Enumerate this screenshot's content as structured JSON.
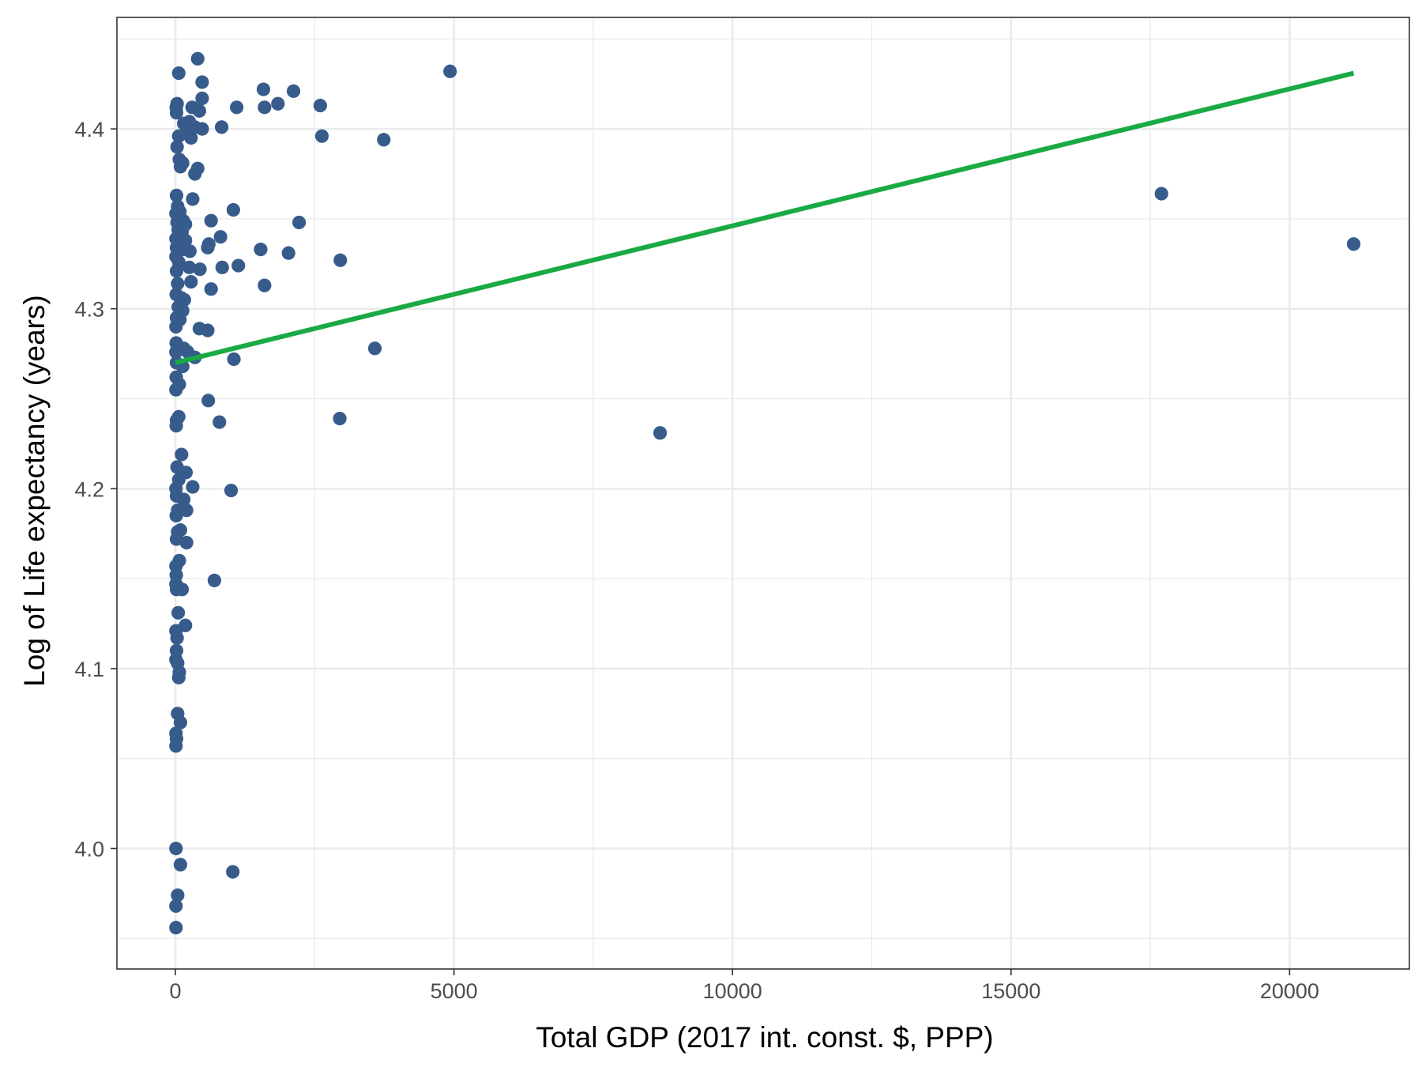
{
  "chart_data": {
    "type": "scatter",
    "title": "",
    "xlabel": "Total GDP (2017 int. const. $, PPP)",
    "ylabel": "Log of Life expectancy  (years)",
    "xlim": [
      -1050,
      22150
    ],
    "ylim": [
      3.933,
      4.462
    ],
    "x_ticks": [
      0,
      5000,
      10000,
      15000,
      20000
    ],
    "y_ticks": [
      4.0,
      4.1,
      4.2,
      4.3,
      4.4
    ],
    "grid": true,
    "legend": "none",
    "colors": {
      "points": "#375c8c",
      "fit_line": "#1aaa44",
      "grid": "#ebebeb",
      "panel_border": "#333333"
    },
    "series": [
      {
        "points": [
          [
            60,
            4.431
          ],
          [
            400,
            4.439
          ],
          [
            480,
            4.426
          ],
          [
            4930,
            4.432
          ],
          [
            1580,
            4.422
          ],
          [
            2120,
            4.421
          ],
          [
            30,
            4.414
          ],
          [
            15,
            4.412
          ],
          [
            20,
            4.409
          ],
          [
            300,
            4.412
          ],
          [
            480,
            4.417
          ],
          [
            430,
            4.41
          ],
          [
            1100,
            4.412
          ],
          [
            1600,
            4.412
          ],
          [
            1840,
            4.414
          ],
          [
            2600,
            4.413
          ],
          [
            150,
            4.403
          ],
          [
            250,
            4.404
          ],
          [
            350,
            4.401
          ],
          [
            200,
            4.398
          ],
          [
            480,
            4.4
          ],
          [
            830,
            4.401
          ],
          [
            60,
            4.396
          ],
          [
            280,
            4.395
          ],
          [
            2630,
            4.396
          ],
          [
            3740,
            4.394
          ],
          [
            30,
            4.39
          ],
          [
            70,
            4.383
          ],
          [
            130,
            4.381
          ],
          [
            90,
            4.379
          ],
          [
            400,
            4.378
          ],
          [
            350,
            4.375
          ],
          [
            20,
            4.363
          ],
          [
            310,
            4.361
          ],
          [
            40,
            4.357
          ],
          [
            10,
            4.353
          ],
          [
            80,
            4.354
          ],
          [
            1040,
            4.355
          ],
          [
            30,
            4.348
          ],
          [
            140,
            4.349
          ],
          [
            180,
            4.347
          ],
          [
            640,
            4.349
          ],
          [
            2220,
            4.348
          ],
          [
            50,
            4.344
          ],
          [
            120,
            4.343
          ],
          [
            10,
            4.339
          ],
          [
            90,
            4.339
          ],
          [
            180,
            4.338
          ],
          [
            600,
            4.336
          ],
          [
            810,
            4.34
          ],
          [
            20,
            4.334
          ],
          [
            130,
            4.333
          ],
          [
            260,
            4.332
          ],
          [
            580,
            4.334
          ],
          [
            1530,
            4.333
          ],
          [
            2030,
            4.331
          ],
          [
            10,
            4.329
          ],
          [
            60,
            4.326
          ],
          [
            2960,
            4.327
          ],
          [
            20,
            4.321
          ],
          [
            250,
            4.323
          ],
          [
            440,
            4.322
          ],
          [
            840,
            4.323
          ],
          [
            1130,
            4.324
          ],
          [
            40,
            4.314
          ],
          [
            280,
            4.315
          ],
          [
            640,
            4.311
          ],
          [
            1600,
            4.313
          ],
          [
            15,
            4.308
          ],
          [
            110,
            4.306
          ],
          [
            160,
            4.305
          ],
          [
            50,
            4.301
          ],
          [
            130,
            4.299
          ],
          [
            20,
            4.295
          ],
          [
            80,
            4.294
          ],
          [
            10,
            4.29
          ],
          [
            430,
            4.289
          ],
          [
            580,
            4.288
          ],
          [
            15,
            4.281
          ],
          [
            150,
            4.278
          ],
          [
            10,
            4.276
          ],
          [
            220,
            4.276
          ],
          [
            3580,
            4.278
          ],
          [
            20,
            4.27
          ],
          [
            1050,
            4.272
          ],
          [
            350,
            4.273
          ],
          [
            130,
            4.268
          ],
          [
            15,
            4.262
          ],
          [
            70,
            4.258
          ],
          [
            10,
            4.255
          ],
          [
            590,
            4.249
          ],
          [
            20,
            4.238
          ],
          [
            60,
            4.24
          ],
          [
            790,
            4.237
          ],
          [
            2950,
            4.239
          ],
          [
            15,
            4.235
          ],
          [
            8700,
            4.231
          ],
          [
            110,
            4.219
          ],
          [
            30,
            4.212
          ],
          [
            190,
            4.209
          ],
          [
            60,
            4.205
          ],
          [
            10,
            4.2
          ],
          [
            310,
            4.201
          ],
          [
            1000,
            4.199
          ],
          [
            20,
            4.196
          ],
          [
            150,
            4.194
          ],
          [
            40,
            4.188
          ],
          [
            200,
            4.188
          ],
          [
            15,
            4.185
          ],
          [
            40,
            4.176
          ],
          [
            90,
            4.177
          ],
          [
            20,
            4.172
          ],
          [
            200,
            4.17
          ],
          [
            70,
            4.16
          ],
          [
            10,
            4.157
          ],
          [
            15,
            4.152
          ],
          [
            10,
            4.147
          ],
          [
            20,
            4.144
          ],
          [
            120,
            4.144
          ],
          [
            700,
            4.149
          ],
          [
            50,
            4.131
          ],
          [
            180,
            4.124
          ],
          [
            10,
            4.121
          ],
          [
            30,
            4.117
          ],
          [
            20,
            4.11
          ],
          [
            10,
            4.105
          ],
          [
            40,
            4.103
          ],
          [
            70,
            4.098
          ],
          [
            60,
            4.095
          ],
          [
            40,
            4.075
          ],
          [
            90,
            4.07
          ],
          [
            10,
            4.064
          ],
          [
            20,
            4.061
          ],
          [
            10,
            4.057
          ],
          [
            10,
            4.0
          ],
          [
            90,
            3.991
          ],
          [
            1030,
            3.987
          ],
          [
            40,
            3.974
          ],
          [
            10,
            3.968
          ],
          [
            10,
            3.956
          ],
          [
            17700,
            4.364
          ],
          [
            21150,
            4.336
          ]
        ]
      }
    ],
    "fit_line": {
      "x": [
        0,
        21150
      ],
      "y": [
        4.27,
        4.431
      ]
    }
  }
}
